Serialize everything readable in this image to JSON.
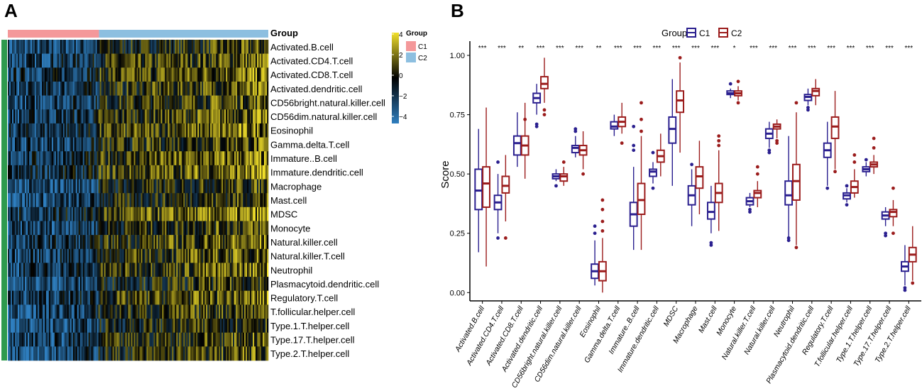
{
  "panels": {
    "a": "A",
    "b": "B"
  },
  "heatmap": {
    "group_label": "Group",
    "group_bar_colors": {
      "C1": "#f4989a",
      "C2": "#8dbfe0"
    },
    "c1_share": 0.35,
    "cells": [
      "Activated.B.cell",
      "Activated.CD4.T.cell",
      "Activated.CD8.T.cell",
      "Activated.dendritic.cell",
      "CD56bright.natural.killer.cell",
      "CD56dim.natural.killer.cell",
      "Eosinophil",
      "Gamma.delta.T.cell",
      "Immature..B.cell",
      "Immature.dendritic.cell",
      "Macrophage",
      "Mast.cell",
      "MDSC",
      "Monocyte",
      "Natural.killer.cell",
      "Natural.killer.T.cell",
      "Neutrophil",
      "Plasmacytoid.dendritic.cell",
      "Regulatory.T.cell",
      "T.follicular.helper.cell",
      "Type.1.T.helper.cell",
      "Type.17.T.helper.cell",
      "Type.2.T.helper.cell"
    ],
    "scale": {
      "ticks": [
        "4",
        "2",
        "0",
        "−2",
        "−4"
      ],
      "low_color": "#2f7fc0",
      "mid_color": "#000000",
      "high_color": "#f2e02a"
    },
    "legend": {
      "title": "Group",
      "items": [
        {
          "label": "C1",
          "color": "#f4989a"
        },
        {
          "label": "C2",
          "color": "#8dbfe0"
        }
      ]
    }
  },
  "chart_data": {
    "type": "box",
    "legend": {
      "title": "Group",
      "series": [
        {
          "name": "C1",
          "color": "#2a1f8f"
        },
        {
          "name": "C2",
          "color": "#9b1c1c"
        }
      ]
    },
    "ylabel": "Score",
    "ylim": [
      0.0,
      1.0
    ],
    "yticks": [
      "0.00",
      "0.25",
      "0.50",
      "0.75",
      "1.00"
    ],
    "categories": [
      "Activated.B.cell",
      "Activated.CD4.T.cell",
      "Activated.CD8.T.cell",
      "Activated.dendritic.cell",
      "CD56bright.natural.killer.cell",
      "CD56dim.natural.killer.cell",
      "Eosinophil",
      "Gamma.delta.T.cell",
      "Immature..B.cell",
      "Immature.dendritic.cell",
      "MDSC",
      "Macrophage",
      "Mast.cell",
      "Monocyte",
      "Natural.killer.T.cell",
      "Natural.killer.cell",
      "Neutrophil",
      "Plasmacytoid.dendritic.cell",
      "Regulatory.T.cell",
      "T.follicular.helper.cell",
      "Type.1.T.helper.cell",
      "Type.17.T.helper.cell",
      "Type.2.T.helper.cell"
    ],
    "significance": [
      "***",
      "***",
      "**",
      "***",
      "***",
      "***",
      "**",
      "***",
      "***",
      "***",
      "***",
      "***",
      "***",
      "*",
      "***",
      "***",
      "***",
      "***",
      "***",
      "***",
      "***",
      "***",
      "***"
    ],
    "series": [
      {
        "name": "C1",
        "boxes": [
          {
            "min": 0.17,
            "q1": 0.35,
            "median": 0.43,
            "q3": 0.52,
            "max": 0.69,
            "outliers": []
          },
          {
            "min": 0.25,
            "q1": 0.35,
            "median": 0.38,
            "q3": 0.41,
            "max": 0.5,
            "outliers": [
              0.55,
              0.23
            ]
          },
          {
            "min": 0.53,
            "q1": 0.58,
            "median": 0.63,
            "q3": 0.66,
            "max": 0.76,
            "outliers": []
          },
          {
            "min": 0.75,
            "q1": 0.8,
            "median": 0.82,
            "q3": 0.84,
            "max": 0.88,
            "outliers": [
              0.71,
              0.7
            ]
          },
          {
            "min": 0.47,
            "q1": 0.48,
            "median": 0.49,
            "q3": 0.5,
            "max": 0.52,
            "outliers": [
              0.45
            ]
          },
          {
            "min": 0.57,
            "q1": 0.59,
            "median": 0.61,
            "q3": 0.62,
            "max": 0.66,
            "outliers": [
              0.69,
              0.68
            ]
          },
          {
            "min": 0.03,
            "q1": 0.06,
            "median": 0.09,
            "q3": 0.12,
            "max": 0.22,
            "outliers": [
              0.25,
              0.28
            ]
          },
          {
            "min": 0.66,
            "q1": 0.69,
            "median": 0.7,
            "q3": 0.72,
            "max": 0.75,
            "outliers": []
          },
          {
            "min": 0.18,
            "q1": 0.28,
            "median": 0.33,
            "q3": 0.38,
            "max": 0.53,
            "outliers": [
              0.6,
              0.62,
              0.7
            ]
          },
          {
            "min": 0.46,
            "q1": 0.49,
            "median": 0.51,
            "q3": 0.52,
            "max": 0.55,
            "outliers": [
              0.59,
              0.44
            ]
          },
          {
            "min": 0.45,
            "q1": 0.63,
            "median": 0.69,
            "q3": 0.74,
            "max": 0.9,
            "outliers": []
          },
          {
            "min": 0.28,
            "q1": 0.37,
            "median": 0.41,
            "q3": 0.45,
            "max": 0.52,
            "outliers": [
              0.54
            ]
          },
          {
            "min": 0.25,
            "q1": 0.31,
            "median": 0.34,
            "q3": 0.38,
            "max": 0.45,
            "outliers": [
              0.2,
              0.21
            ]
          },
          {
            "min": 0.82,
            "q1": 0.835,
            "median": 0.84,
            "q3": 0.85,
            "max": 0.86,
            "outliers": [
              0.88
            ]
          },
          {
            "min": 0.36,
            "q1": 0.37,
            "median": 0.385,
            "q3": 0.4,
            "max": 0.42,
            "outliers": [
              0.35,
              0.34
            ]
          },
          {
            "min": 0.61,
            "q1": 0.65,
            "median": 0.67,
            "q3": 0.69,
            "max": 0.72,
            "outliers": [
              0.6,
              0.59
            ]
          },
          {
            "min": 0.23,
            "q1": 0.37,
            "median": 0.41,
            "q3": 0.47,
            "max": 0.66,
            "outliers": [
              0.22,
              0.23
            ]
          },
          {
            "min": 0.79,
            "q1": 0.81,
            "median": 0.825,
            "q3": 0.835,
            "max": 0.86,
            "outliers": [
              0.77,
              0.78
            ]
          },
          {
            "min": 0.45,
            "q1": 0.57,
            "median": 0.6,
            "q3": 0.63,
            "max": 0.72,
            "outliers": [
              0.44
            ]
          },
          {
            "min": 0.38,
            "q1": 0.395,
            "median": 0.41,
            "q3": 0.42,
            "max": 0.44,
            "outliers": [
              0.37,
              0.45
            ]
          },
          {
            "min": 0.49,
            "q1": 0.51,
            "median": 0.52,
            "q3": 0.53,
            "max": 0.55,
            "outliers": [
              0.56
            ]
          },
          {
            "min": 0.28,
            "q1": 0.31,
            "median": 0.325,
            "q3": 0.34,
            "max": 0.36,
            "outliers": [
              0.25,
              0.24
            ]
          },
          {
            "min": 0.03,
            "q1": 0.09,
            "median": 0.11,
            "q3": 0.13,
            "max": 0.2,
            "outliers": [
              0.01,
              0.02
            ]
          }
        ]
      },
      {
        "name": "C2",
        "boxes": [
          {
            "min": 0.11,
            "q1": 0.36,
            "median": 0.46,
            "q3": 0.53,
            "max": 0.78,
            "outliers": []
          },
          {
            "min": 0.3,
            "q1": 0.42,
            "median": 0.45,
            "q3": 0.49,
            "max": 0.58,
            "outliers": [
              0.23
            ]
          },
          {
            "min": 0.48,
            "q1": 0.58,
            "median": 0.62,
            "q3": 0.66,
            "max": 0.8,
            "outliers": [
              0.73
            ]
          },
          {
            "min": 0.8,
            "q1": 0.86,
            "median": 0.88,
            "q3": 0.91,
            "max": 0.99,
            "outliers": [
              0.75,
              0.77
            ]
          },
          {
            "min": 0.45,
            "q1": 0.47,
            "median": 0.49,
            "q3": 0.5,
            "max": 0.53,
            "outliers": [
              0.55
            ]
          },
          {
            "min": 0.52,
            "q1": 0.58,
            "median": 0.6,
            "q3": 0.62,
            "max": 0.68,
            "outliers": [
              0.5
            ]
          },
          {
            "min": 0.0,
            "q1": 0.05,
            "median": 0.09,
            "q3": 0.13,
            "max": 0.23,
            "outliers": [
              0.26,
              0.3,
              0.35,
              0.39
            ]
          },
          {
            "min": 0.67,
            "q1": 0.7,
            "median": 0.72,
            "q3": 0.74,
            "max": 0.8,
            "outliers": [
              0.63
            ]
          },
          {
            "min": 0.18,
            "q1": 0.33,
            "median": 0.39,
            "q3": 0.46,
            "max": 0.66,
            "outliers": [
              0.68,
              0.73,
              0.8
            ]
          },
          {
            "min": 0.49,
            "q1": 0.55,
            "median": 0.575,
            "q3": 0.6,
            "max": 0.67,
            "outliers": []
          },
          {
            "min": 0.59,
            "q1": 0.76,
            "median": 0.81,
            "q3": 0.85,
            "max": 0.97,
            "outliers": [
              0.99
            ]
          },
          {
            "min": 0.33,
            "q1": 0.44,
            "median": 0.49,
            "q3": 0.53,
            "max": 0.64,
            "outliers": []
          },
          {
            "min": 0.26,
            "q1": 0.38,
            "median": 0.42,
            "q3": 0.46,
            "max": 0.6,
            "outliers": [
              0.62,
              0.64,
              0.66
            ]
          },
          {
            "min": 0.81,
            "q1": 0.83,
            "median": 0.84,
            "q3": 0.85,
            "max": 0.87,
            "outliers": [
              0.8,
              0.89
            ]
          },
          {
            "min": 0.36,
            "q1": 0.4,
            "median": 0.42,
            "q3": 0.43,
            "max": 0.47,
            "outliers": [
              0.5,
              0.53
            ]
          },
          {
            "min": 0.65,
            "q1": 0.69,
            "median": 0.7,
            "q3": 0.71,
            "max": 0.73,
            "outliers": [
              0.64,
              0.63
            ]
          },
          {
            "min": 0.2,
            "q1": 0.39,
            "median": 0.47,
            "q3": 0.54,
            "max": 0.76,
            "outliers": [
              0.19,
              0.8
            ]
          },
          {
            "min": 0.79,
            "q1": 0.83,
            "median": 0.85,
            "q3": 0.86,
            "max": 0.9,
            "outliers": []
          },
          {
            "min": 0.52,
            "q1": 0.65,
            "median": 0.7,
            "q3": 0.74,
            "max": 0.85,
            "outliers": [
              0.51
            ]
          },
          {
            "min": 0.4,
            "q1": 0.42,
            "median": 0.445,
            "q3": 0.47,
            "max": 0.52,
            "outliers": [
              0.55,
              0.58
            ]
          },
          {
            "min": 0.5,
            "q1": 0.53,
            "median": 0.54,
            "q3": 0.55,
            "max": 0.58,
            "outliers": [
              0.61,
              0.65
            ]
          },
          {
            "min": 0.28,
            "q1": 0.32,
            "median": 0.34,
            "q3": 0.35,
            "max": 0.39,
            "outliers": [
              0.25,
              0.44
            ]
          },
          {
            "min": 0.05,
            "q1": 0.13,
            "median": 0.16,
            "q3": 0.19,
            "max": 0.28,
            "outliers": [
              0.04
            ]
          }
        ]
      }
    ]
  }
}
